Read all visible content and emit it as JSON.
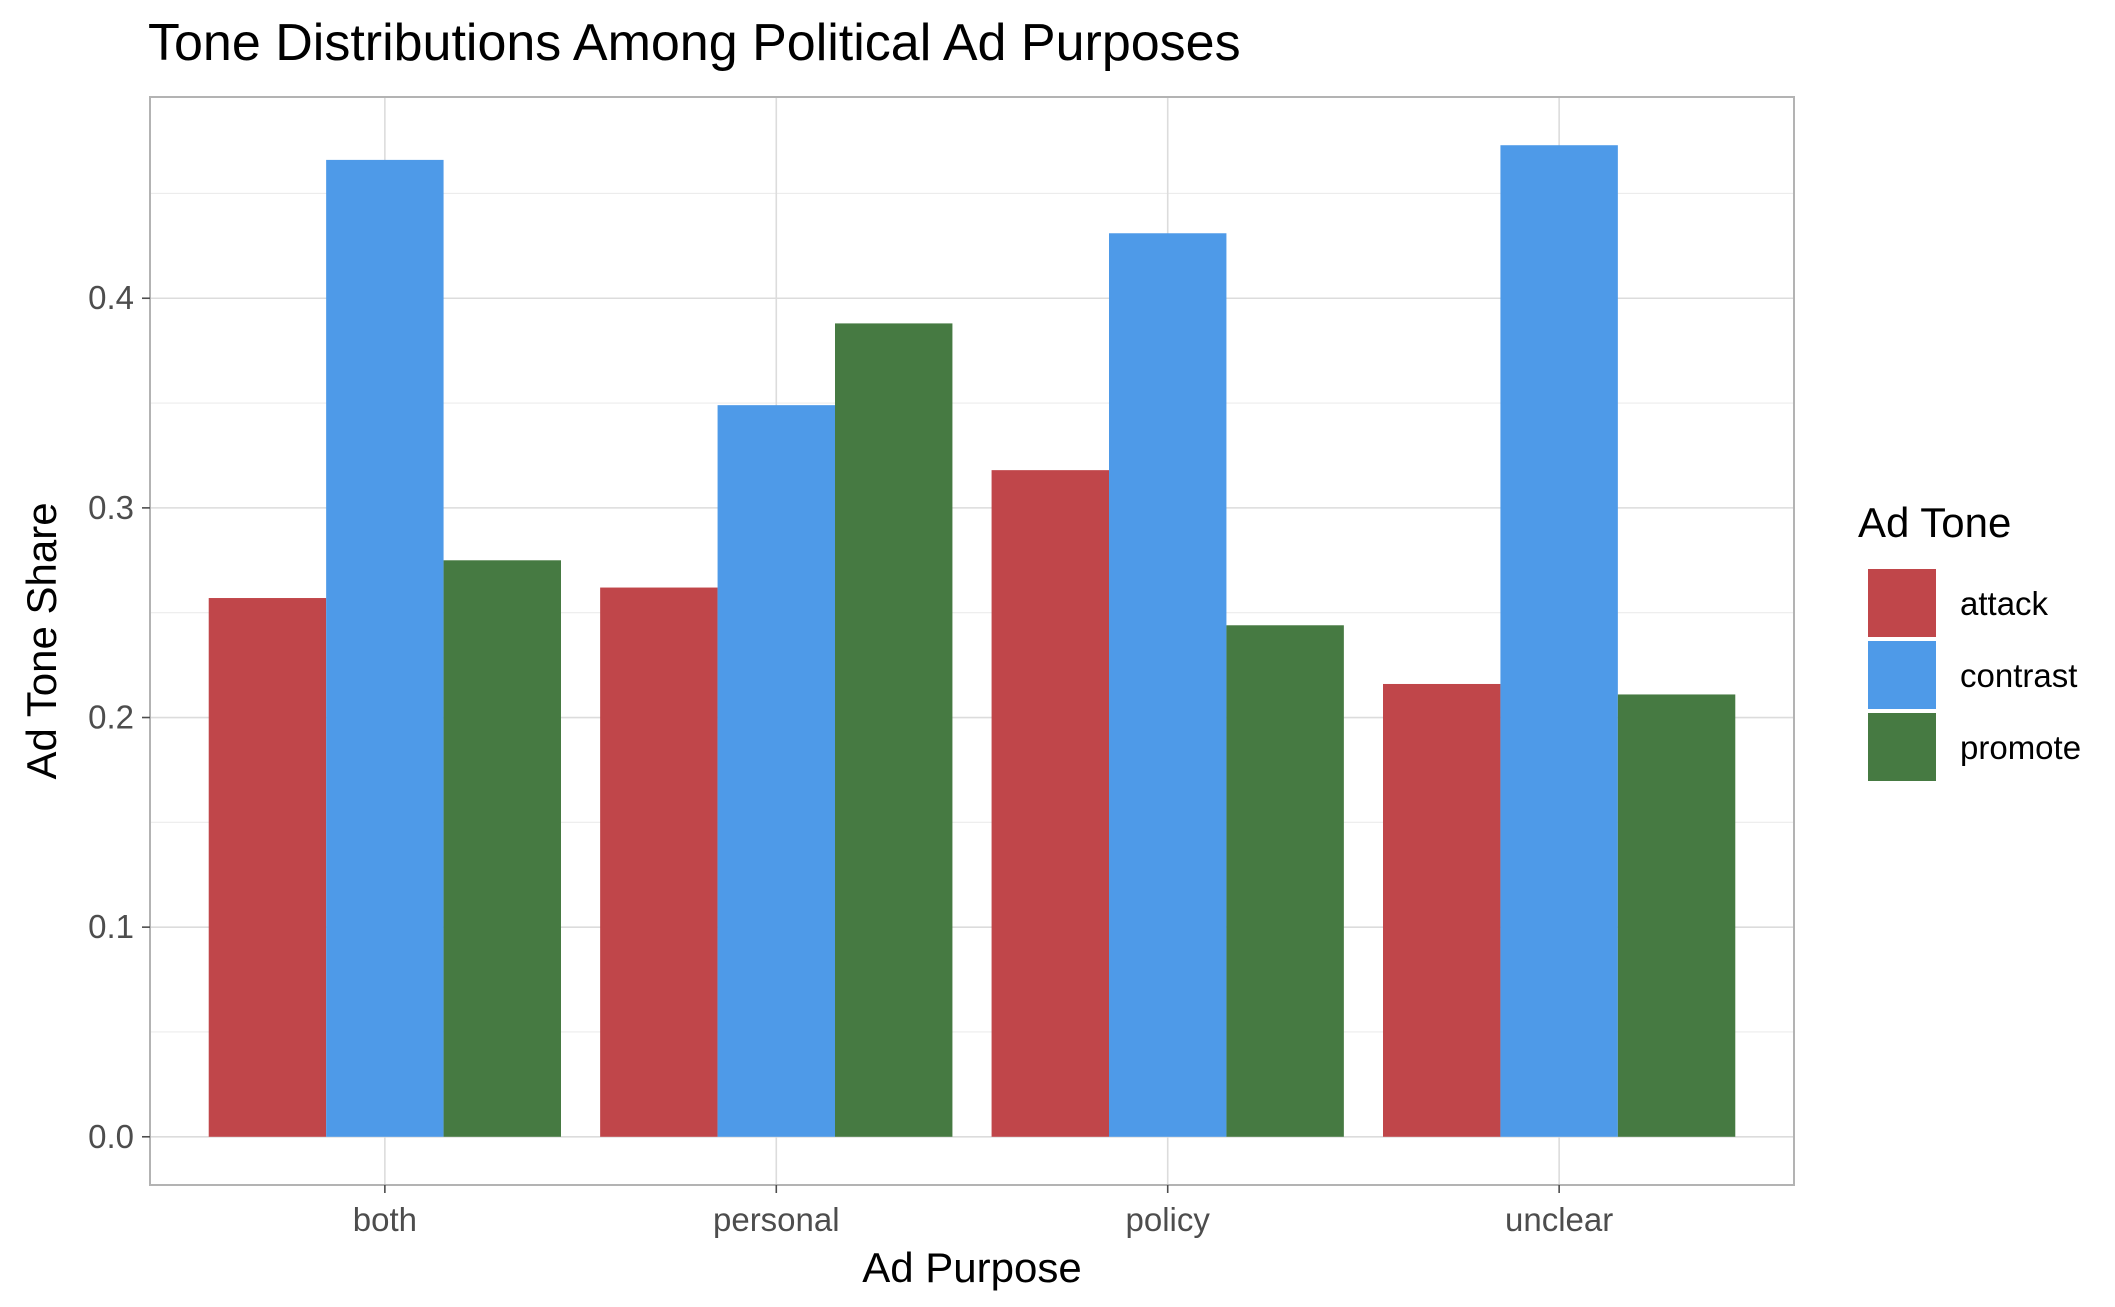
{
  "chart_data": {
    "type": "bar",
    "title": "Tone Distributions Among Political Ad Purposes",
    "xlabel": "Ad Purpose",
    "ylabel": "Ad Tone Share",
    "categories": [
      "both",
      "personal",
      "policy",
      "unclear"
    ],
    "series": [
      {
        "name": "attack",
        "color": "#c0464a",
        "values": [
          0.257,
          0.262,
          0.318,
          0.216
        ]
      },
      {
        "name": "contrast",
        "color": "#4e9ae8",
        "values": [
          0.466,
          0.349,
          0.431,
          0.473
        ]
      },
      {
        "name": "promote",
        "color": "#467a42",
        "values": [
          0.275,
          0.388,
          0.244,
          0.211
        ]
      }
    ],
    "ylim": [
      -0.023,
      0.496
    ],
    "y_ticks": [
      0.0,
      0.1,
      0.2,
      0.3,
      0.4
    ],
    "y_tick_labels": [
      "0.0",
      "0.1",
      "0.2",
      "0.3",
      "0.4"
    ],
    "grid": true,
    "legend": {
      "title": "Ad Tone",
      "placement": "right"
    }
  }
}
